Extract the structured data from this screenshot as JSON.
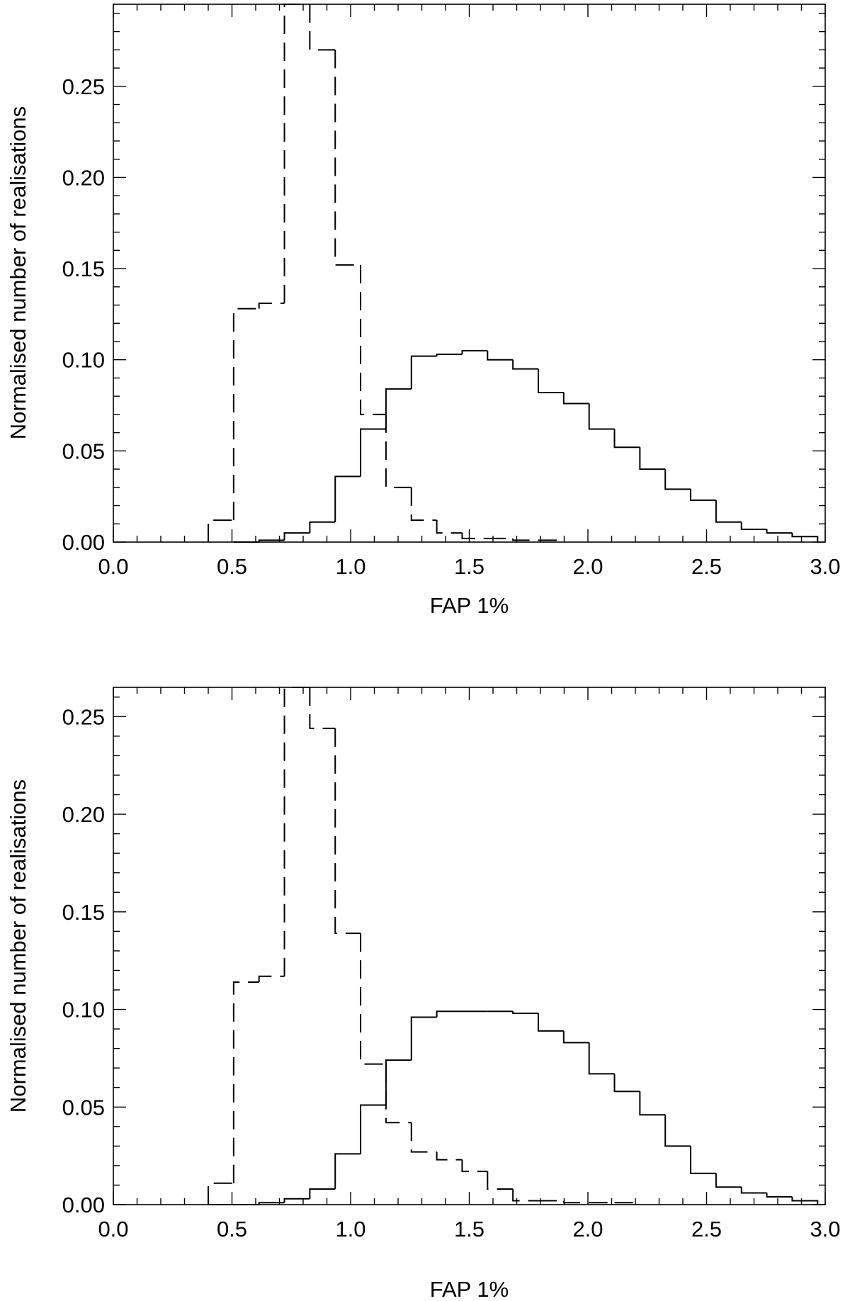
{
  "chart_data": [
    {
      "type": "histogram",
      "xlabel": "FAP 1%",
      "ylabel": "Normalised number of realisations",
      "xlim": [
        0.0,
        3.0
      ],
      "ylim": [
        0.0,
        0.295
      ],
      "x_ticks": [
        "0.0",
        "0.5",
        "1.0",
        "1.5",
        "2.0",
        "2.5",
        "3.0"
      ],
      "y_ticks": [
        "0.00",
        "0.05",
        "0.10",
        "0.15",
        "0.20",
        "0.25"
      ],
      "bin_width": 0.107,
      "series": [
        {
          "line_style": "dashed",
          "bin_starts": [
            0.4,
            0.507,
            0.614,
            0.721,
            0.828,
            0.935,
            1.042,
            1.149,
            1.256,
            1.363,
            1.47,
            1.577,
            1.684,
            1.791
          ],
          "values": [
            0.012,
            0.128,
            0.131,
            0.295,
            0.27,
            0.152,
            0.07,
            0.03,
            0.012,
            0.005,
            0.002,
            0.002,
            0.001,
            0.001
          ]
        },
        {
          "line_style": "solid",
          "bin_starts": [
            0.507,
            0.614,
            0.721,
            0.828,
            0.935,
            1.042,
            1.149,
            1.256,
            1.363,
            1.47,
            1.577,
            1.684,
            1.791,
            1.898,
            2.005,
            2.112,
            2.219,
            2.326,
            2.433,
            2.54,
            2.647,
            2.754,
            2.861
          ],
          "values": [
            0.0,
            0.001,
            0.005,
            0.011,
            0.036,
            0.062,
            0.084,
            0.102,
            0.103,
            0.105,
            0.1,
            0.095,
            0.082,
            0.076,
            0.062,
            0.052,
            0.04,
            0.029,
            0.023,
            0.011,
            0.007,
            0.005,
            0.003
          ]
        }
      ]
    },
    {
      "type": "histogram",
      "xlabel": "FAP 1%",
      "ylabel": "Normalised number of realisations",
      "xlim": [
        0.0,
        3.0
      ],
      "ylim": [
        0.0,
        0.265
      ],
      "x_ticks": [
        "0.0",
        "0.5",
        "1.0",
        "1.5",
        "2.0",
        "2.5",
        "3.0"
      ],
      "y_ticks": [
        "0.00",
        "0.05",
        "0.10",
        "0.15",
        "0.20",
        "0.25"
      ],
      "bin_width": 0.107,
      "series": [
        {
          "line_style": "dashed",
          "bin_starts": [
            0.4,
            0.507,
            0.614,
            0.721,
            0.828,
            0.935,
            1.042,
            1.149,
            1.256,
            1.363,
            1.47,
            1.577,
            1.684,
            1.791,
            1.898,
            2.005,
            2.112
          ],
          "values": [
            0.011,
            0.114,
            0.117,
            0.265,
            0.244,
            0.139,
            0.072,
            0.042,
            0.027,
            0.023,
            0.017,
            0.008,
            0.002,
            0.002,
            0.001,
            0.001,
            0.001
          ]
        },
        {
          "line_style": "solid",
          "bin_starts": [
            0.4,
            0.507,
            0.614,
            0.721,
            0.828,
            0.935,
            1.042,
            1.149,
            1.256,
            1.363,
            1.47,
            1.577,
            1.684,
            1.791,
            1.898,
            2.005,
            2.112,
            2.219,
            2.326,
            2.433,
            2.54,
            2.647,
            2.754,
            2.861
          ],
          "values": [
            0.0,
            0.0,
            0.001,
            0.003,
            0.008,
            0.026,
            0.051,
            0.074,
            0.096,
            0.099,
            0.099,
            0.099,
            0.098,
            0.089,
            0.083,
            0.067,
            0.058,
            0.046,
            0.03,
            0.016,
            0.009,
            0.006,
            0.004,
            0.002
          ]
        }
      ]
    }
  ]
}
